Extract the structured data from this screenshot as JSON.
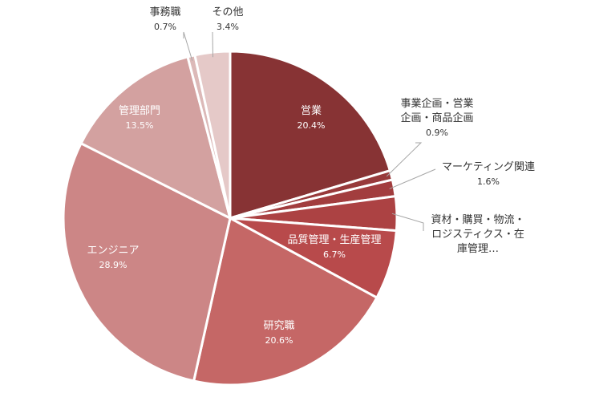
{
  "chart_data": {
    "type": "pie",
    "start_angle_deg": 0,
    "direction": "clockwise",
    "slices": [
      {
        "label": "営業",
        "value": 20.4,
        "value_text": "20.4%",
        "color": "#873334"
      },
      {
        "label": "事業企画・営業企画・商品企画",
        "label_lines": [
          "事業企画・営業",
          "企画・商品企画"
        ],
        "value": 0.9,
        "value_text": "0.9%",
        "color": "#983a3b"
      },
      {
        "label": "マーケティング関連",
        "value": 1.6,
        "value_text": "1.6%",
        "color": "#a23d3e"
      },
      {
        "label": "資材・購買・物流・ロジスティクス・在庫管理…",
        "label_lines": [
          "資材・購買・物流・",
          "ロジスティクス・在",
          "庫管理…"
        ],
        "value": 3.3,
        "value_text": "",
        "color": "#ac4243"
      },
      {
        "label": "品質管理・生産管理",
        "value": 6.7,
        "value_text": "6.7%",
        "color": "#b84a4b"
      },
      {
        "label": "研究職",
        "value": 20.6,
        "value_text": "20.6%",
        "color": "#c56766"
      },
      {
        "label": "エンジニア",
        "value": 28.9,
        "value_text": "28.9%",
        "color": "#cc8686"
      },
      {
        "label": "管理部門",
        "value": 13.5,
        "value_text": "13.5%",
        "color": "#d3a1a0"
      },
      {
        "label": "事務職",
        "value": 0.7,
        "value_text": "0.7%",
        "color": "#dcb9b8"
      },
      {
        "label": "その他",
        "value": 3.4,
        "value_text": "3.4%",
        "color": "#e5c9c8"
      }
    ]
  }
}
